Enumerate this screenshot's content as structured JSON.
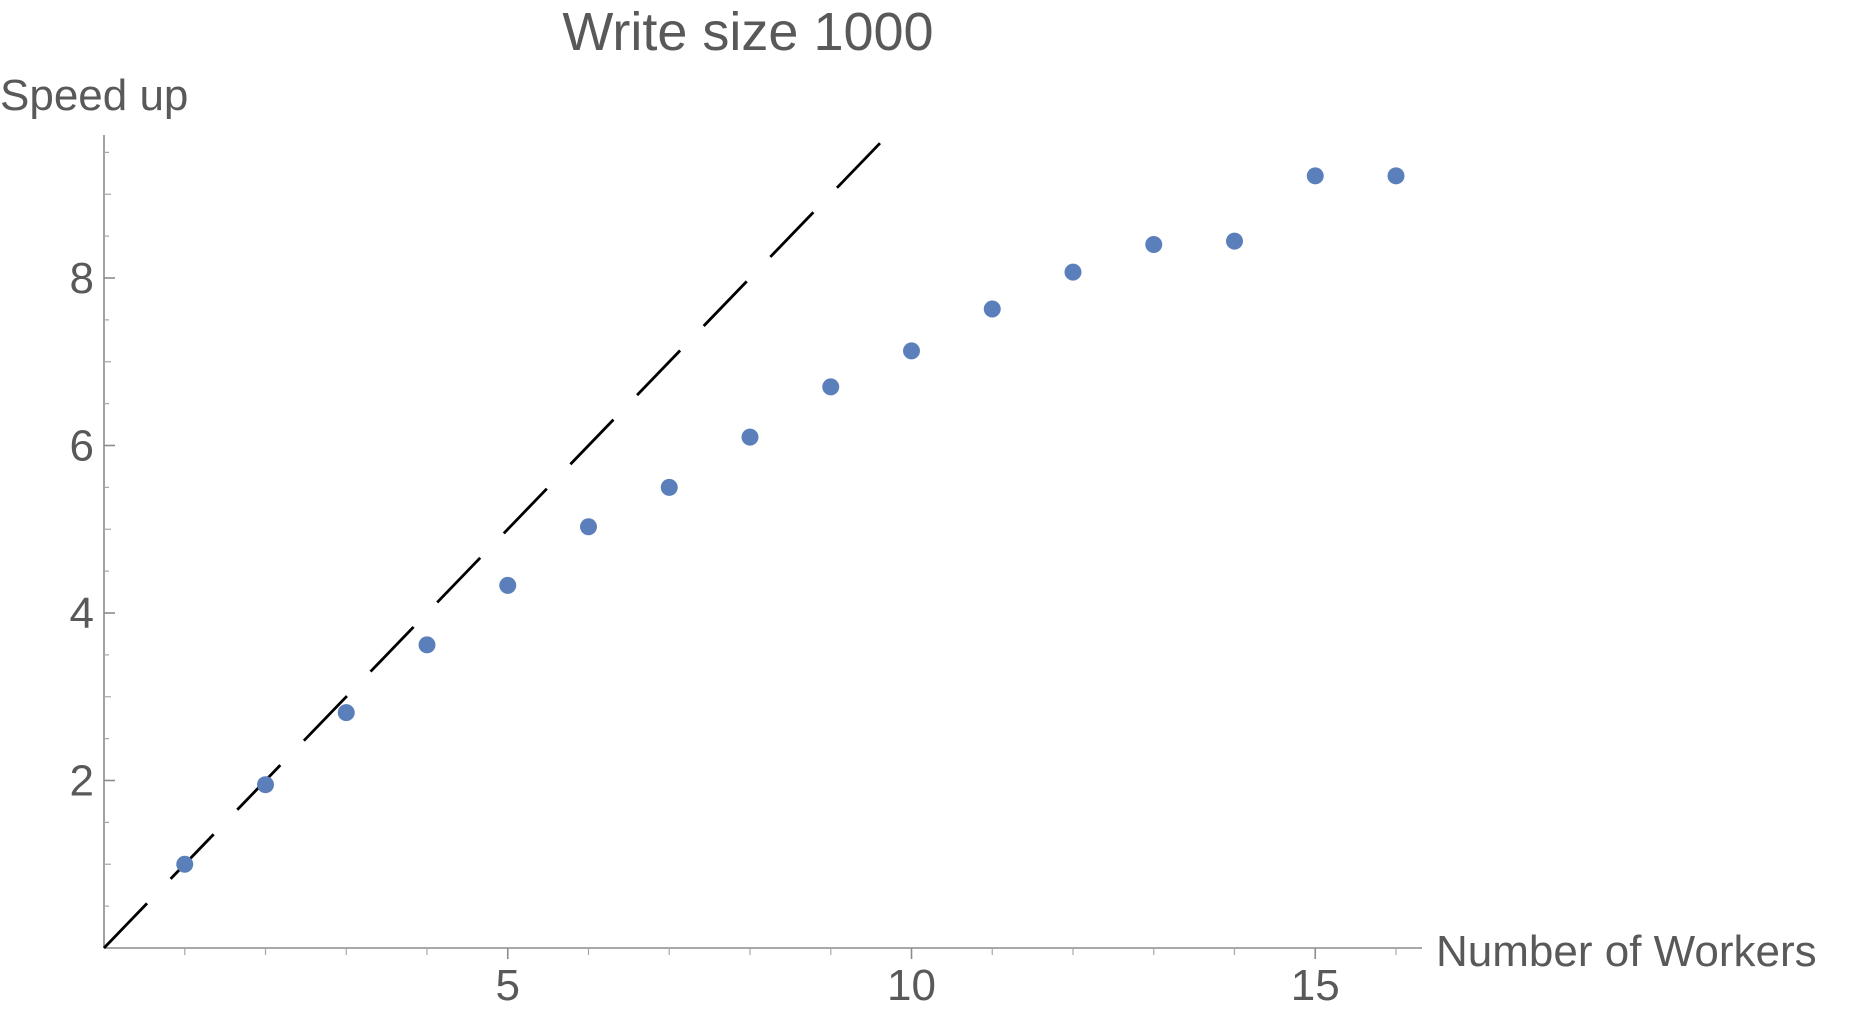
{
  "chart_data": {
    "type": "scatter",
    "title": "Write size 1000",
    "xlabel": "Number of Workers",
    "ylabel": "Speed up",
    "xlim": [
      0,
      16.5
    ],
    "ylim": [
      0,
      9.6
    ],
    "x_ticks": [
      5,
      10,
      15
    ],
    "y_ticks": [
      2,
      4,
      6,
      8
    ],
    "grid": false,
    "point_color": "#5b7fbb",
    "reference_line": {
      "style": "dashed",
      "color": "#000000",
      "points": [
        [
          0,
          0
        ],
        [
          9.8,
          9.8
        ]
      ]
    },
    "series": [
      {
        "x": [
          1,
          2,
          3,
          4,
          5,
          6,
          7,
          8,
          9,
          10,
          11,
          12,
          13,
          14,
          15,
          16
        ],
        "y": [
          1.0,
          1.95,
          2.81,
          3.62,
          4.33,
          5.03,
          5.5,
          6.1,
          6.7,
          7.13,
          7.63,
          8.07,
          8.4,
          8.44,
          9.22,
          9.22
        ]
      }
    ]
  }
}
